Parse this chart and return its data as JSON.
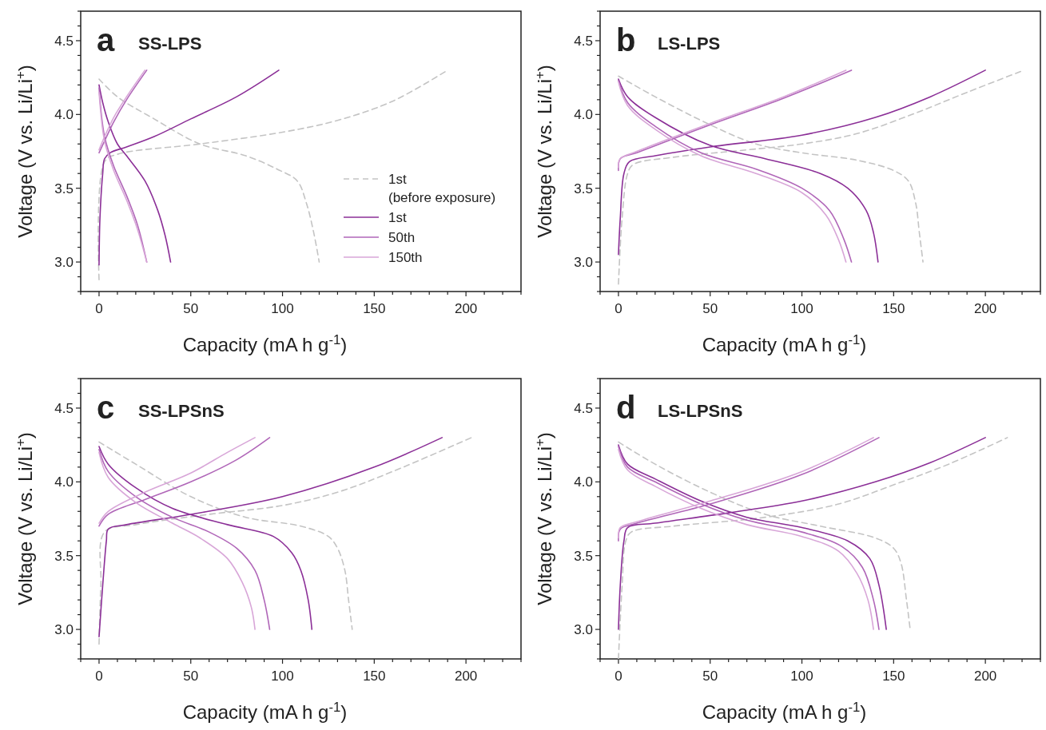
{
  "chart_data": [
    {
      "type": "line",
      "title": "SS-LPS",
      "annotations": [
        "a"
      ],
      "xlabel": "Capacity (mA h g$^{-1}$)",
      "ylabel": "Voltage (V vs. Li/Li$^{+}$)",
      "xlim": [
        -10,
        230
      ],
      "ylim": [
        2.8,
        4.7
      ],
      "legend": "bottom right",
      "xticks": [
        {
          "value": -10,
          "label": null
        },
        {
          "value": 0,
          "label": "0"
        },
        {
          "value": 10,
          "label": null
        },
        {
          "value": 20,
          "label": null
        },
        {
          "value": 30,
          "label": null
        },
        {
          "value": 40,
          "label": null
        },
        {
          "value": 50,
          "label": "50"
        },
        {
          "value": 60,
          "label": null
        },
        {
          "value": 70,
          "label": null
        },
        {
          "value": 80,
          "label": null
        },
        {
          "value": 90,
          "label": null
        },
        {
          "value": 100,
          "label": "100"
        },
        {
          "value": 110,
          "label": null
        },
        {
          "value": 120,
          "label": null
        },
        {
          "value": 130,
          "label": null
        },
        {
          "value": 140,
          "label": null
        },
        {
          "value": 150,
          "label": "150"
        },
        {
          "value": 160,
          "label": null
        },
        {
          "value": 170,
          "label": null
        },
        {
          "value": 180,
          "label": null
        },
        {
          "value": 190,
          "label": null
        },
        {
          "value": 200,
          "label": "200"
        },
        {
          "value": 210,
          "label": null
        },
        {
          "value": 220,
          "label": null
        },
        {
          "value": 230,
          "label": null
        }
      ],
      "yticks": [
        {
          "value": 2.8,
          "label": null
        },
        {
          "value": 2.9,
          "label": null
        },
        {
          "value": 3,
          "label": "3.0"
        },
        {
          "value": 3.1,
          "label": null
        },
        {
          "value": 3.2,
          "label": null
        },
        {
          "value": 3.3,
          "label": null
        },
        {
          "value": 3.4,
          "label": null
        },
        {
          "value": 3.5,
          "label": "3.5"
        },
        {
          "value": 3.6,
          "label": null
        },
        {
          "value": 3.7,
          "label": null
        },
        {
          "value": 3.8,
          "label": null
        },
        {
          "value": 3.9,
          "label": null
        },
        {
          "value": 4,
          "label": "4.0"
        },
        {
          "value": 4.1,
          "label": null
        },
        {
          "value": 4.2,
          "label": null
        },
        {
          "value": 4.3,
          "label": null
        },
        {
          "value": 4.4,
          "label": null
        },
        {
          "value": 4.5,
          "label": "4.5"
        },
        {
          "value": 4.6,
          "label": null
        },
        {
          "value": 4.7,
          "label": null
        }
      ],
      "series": [
        {
          "name": "1st\n(before exposure)",
          "color": "#c4c4c4",
          "line_style": "dashed",
          "x": [
            0,
            3,
            10,
            55,
            100,
            130,
            160,
            190,
            null,
            0,
            10,
            30,
            55,
            80,
            97,
            108,
            113,
            117,
            120
          ],
          "values": [
            2.88,
            3.68,
            3.73,
            3.8,
            3.88,
            3.96,
            4.09,
            4.3,
            null,
            4.24,
            4.12,
            3.97,
            3.8,
            3.72,
            3.63,
            3.55,
            3.4,
            3.2,
            3.0
          ]
        },
        {
          "name": "1st",
          "color": "#8b2f97",
          "x": [
            0,
            0.5,
            2,
            3,
            6,
            15,
            30,
            50,
            75,
            98,
            null,
            0,
            2,
            5,
            10,
            15,
            25,
            32,
            36,
            39
          ],
          "values": [
            2.98,
            3.3,
            3.6,
            3.7,
            3.74,
            3.78,
            3.85,
            3.97,
            4.12,
            4.3,
            null,
            4.2,
            4.08,
            3.95,
            3.8,
            3.72,
            3.55,
            3.35,
            3.18,
            3.0
          ]
        },
        {
          "name": "50th",
          "color": "#b066b8",
          "x": [
            0,
            3,
            8,
            15,
            26,
            null,
            0,
            3,
            8,
            15,
            21,
            26
          ],
          "values": [
            3.74,
            3.82,
            3.95,
            4.1,
            4.3,
            null,
            4.18,
            3.85,
            3.65,
            3.45,
            3.25,
            3.0
          ]
        },
        {
          "name": "150th",
          "color": "#d8a6d8",
          "x": [
            0,
            3,
            8,
            15,
            25,
            null,
            0,
            3,
            8,
            15,
            21,
            26
          ],
          "values": [
            3.76,
            3.85,
            3.98,
            4.12,
            4.3,
            null,
            4.15,
            3.82,
            3.62,
            3.42,
            3.22,
            3.0
          ]
        }
      ]
    },
    {
      "type": "line",
      "title": "LS-LPS",
      "annotations": [
        "b"
      ],
      "xlabel": "Capacity (mA h g$^{-1}$)",
      "ylabel": "Voltage (V vs. Li/Li$^{+}$)",
      "xlim": [
        -10,
        230
      ],
      "ylim": [
        2.8,
        4.7
      ],
      "xticks": [
        {
          "value": -10,
          "label": null
        },
        {
          "value": 0,
          "label": "0"
        },
        {
          "value": 10,
          "label": null
        },
        {
          "value": 20,
          "label": null
        },
        {
          "value": 30,
          "label": null
        },
        {
          "value": 40,
          "label": null
        },
        {
          "value": 50,
          "label": "50"
        },
        {
          "value": 60,
          "label": null
        },
        {
          "value": 70,
          "label": null
        },
        {
          "value": 80,
          "label": null
        },
        {
          "value": 90,
          "label": null
        },
        {
          "value": 100,
          "label": "100"
        },
        {
          "value": 110,
          "label": null
        },
        {
          "value": 120,
          "label": null
        },
        {
          "value": 130,
          "label": null
        },
        {
          "value": 140,
          "label": null
        },
        {
          "value": 150,
          "label": "150"
        },
        {
          "value": 160,
          "label": null
        },
        {
          "value": 170,
          "label": null
        },
        {
          "value": 180,
          "label": null
        },
        {
          "value": 190,
          "label": null
        },
        {
          "value": 200,
          "label": "200"
        },
        {
          "value": 210,
          "label": null
        },
        {
          "value": 220,
          "label": null
        },
        {
          "value": 230,
          "label": null
        }
      ],
      "yticks": [
        {
          "value": 2.8,
          "label": null
        },
        {
          "value": 2.9,
          "label": null
        },
        {
          "value": 3,
          "label": "3.0"
        },
        {
          "value": 3.1,
          "label": null
        },
        {
          "value": 3.2,
          "label": null
        },
        {
          "value": 3.3,
          "label": null
        },
        {
          "value": 3.4,
          "label": null
        },
        {
          "value": 3.5,
          "label": "3.5"
        },
        {
          "value": 3.6,
          "label": null
        },
        {
          "value": 3.7,
          "label": null
        },
        {
          "value": 3.8,
          "label": null
        },
        {
          "value": 3.9,
          "label": null
        },
        {
          "value": 4,
          "label": "4.0"
        },
        {
          "value": 4.1,
          "label": null
        },
        {
          "value": 4.2,
          "label": null
        },
        {
          "value": 4.3,
          "label": null
        },
        {
          "value": 4.4,
          "label": null
        },
        {
          "value": 4.5,
          "label": "4.5"
        },
        {
          "value": 4.6,
          "label": null
        },
        {
          "value": 4.7,
          "label": null
        }
      ],
      "series": [
        {
          "color": "#c4c4c4",
          "line_style": "dashed",
          "x": [
            0,
            2,
            5,
            8,
            30,
            70,
            100,
            130,
            160,
            190,
            221,
            null,
            0,
            20,
            50,
            75,
            100,
            130,
            150,
            158,
            162,
            164,
            166
          ],
          "values": [
            2.85,
            3.3,
            3.6,
            3.66,
            3.71,
            3.76,
            3.8,
            3.87,
            4.0,
            4.15,
            4.3,
            null,
            4.26,
            4.12,
            3.93,
            3.8,
            3.74,
            3.69,
            3.62,
            3.55,
            3.4,
            3.2,
            3.0
          ]
        },
        {
          "color": "#8b2f97",
          "x": [
            0,
            1,
            3,
            6,
            20,
            50,
            100,
            140,
            170,
            200,
            null,
            0,
            5,
            20,
            50,
            80,
            110,
            125,
            135,
            139,
            141.5
          ],
          "values": [
            3.05,
            3.3,
            3.6,
            3.68,
            3.72,
            3.78,
            3.86,
            3.98,
            4.12,
            4.3,
            null,
            4.24,
            4.12,
            3.98,
            3.79,
            3.7,
            3.6,
            3.5,
            3.35,
            3.2,
            3.0
          ]
        },
        {
          "color": "#b066b8",
          "x": [
            0,
            1,
            10,
            50,
            90,
            127,
            null,
            0,
            5,
            20,
            45,
            75,
            100,
            115,
            123,
            127
          ],
          "values": [
            3.62,
            3.7,
            3.74,
            3.93,
            4.11,
            4.3,
            null,
            4.23,
            4.08,
            3.92,
            3.74,
            3.63,
            3.5,
            3.35,
            3.15,
            3.0
          ]
        },
        {
          "color": "#d8a6d8",
          "x": [
            0,
            1,
            10,
            50,
            90,
            124,
            null,
            0,
            5,
            20,
            45,
            75,
            100,
            113,
            120,
            124
          ],
          "values": [
            3.64,
            3.7,
            3.75,
            3.94,
            4.12,
            4.3,
            null,
            4.22,
            4.06,
            3.9,
            3.72,
            3.6,
            3.47,
            3.32,
            3.15,
            3.0
          ]
        }
      ]
    },
    {
      "type": "line",
      "title": "SS-LPSnS",
      "annotations": [
        "c"
      ],
      "xlabel": "Capacity (mA h g$^{-1}$)",
      "ylabel": "Voltage (V vs. Li/Li$^{+}$)",
      "xlim": [
        -10,
        230
      ],
      "ylim": [
        2.8,
        4.7
      ],
      "xticks": [
        {
          "value": -10,
          "label": null
        },
        {
          "value": 0,
          "label": "0"
        },
        {
          "value": 10,
          "label": null
        },
        {
          "value": 20,
          "label": null
        },
        {
          "value": 30,
          "label": null
        },
        {
          "value": 40,
          "label": null
        },
        {
          "value": 50,
          "label": "50"
        },
        {
          "value": 60,
          "label": null
        },
        {
          "value": 70,
          "label": null
        },
        {
          "value": 80,
          "label": null
        },
        {
          "value": 90,
          "label": null
        },
        {
          "value": 100,
          "label": "100"
        },
        {
          "value": 110,
          "label": null
        },
        {
          "value": 120,
          "label": null
        },
        {
          "value": 130,
          "label": null
        },
        {
          "value": 140,
          "label": null
        },
        {
          "value": 150,
          "label": "150"
        },
        {
          "value": 160,
          "label": null
        },
        {
          "value": 170,
          "label": null
        },
        {
          "value": 180,
          "label": null
        },
        {
          "value": 190,
          "label": null
        },
        {
          "value": 200,
          "label": "200"
        },
        {
          "value": 210,
          "label": null
        },
        {
          "value": 220,
          "label": null
        },
        {
          "value": 230,
          "label": null
        }
      ],
      "yticks": [
        {
          "value": 2.8,
          "label": null
        },
        {
          "value": 2.9,
          "label": null
        },
        {
          "value": 3,
          "label": "3.0"
        },
        {
          "value": 3.1,
          "label": null
        },
        {
          "value": 3.2,
          "label": null
        },
        {
          "value": 3.3,
          "label": null
        },
        {
          "value": 3.4,
          "label": null
        },
        {
          "value": 3.5,
          "label": "3.5"
        },
        {
          "value": 3.6,
          "label": null
        },
        {
          "value": 3.7,
          "label": null
        },
        {
          "value": 3.8,
          "label": null
        },
        {
          "value": 3.9,
          "label": null
        },
        {
          "value": 4,
          "label": "4.0"
        },
        {
          "value": 4.1,
          "label": null
        },
        {
          "value": 4.2,
          "label": null
        },
        {
          "value": 4.3,
          "label": null
        },
        {
          "value": 4.4,
          "label": null
        },
        {
          "value": 4.5,
          "label": "4.5"
        },
        {
          "value": 4.6,
          "label": null
        },
        {
          "value": 4.7,
          "label": null
        }
      ],
      "series": [
        {
          "color": "#c4c4c4",
          "line_style": "dashed",
          "x": [
            0,
            1,
            3,
            20,
            60,
            100,
            130,
            160,
            203,
            null,
            0,
            20,
            50,
            80,
            110,
            125,
            130,
            134,
            136,
            138
          ],
          "values": [
            2.9,
            3.3,
            3.66,
            3.71,
            3.78,
            3.84,
            3.93,
            4.07,
            4.3,
            null,
            4.27,
            4.12,
            3.9,
            3.76,
            3.7,
            3.63,
            3.55,
            3.4,
            3.2,
            3.0
          ]
        },
        {
          "color": "#8b2f97",
          "x": [
            0,
            2,
            4,
            5,
            15,
            50,
            100,
            150,
            187,
            null,
            0,
            5,
            20,
            40,
            70,
            95,
            105,
            110,
            114,
            116
          ],
          "values": [
            2.95,
            3.3,
            3.6,
            3.68,
            3.71,
            3.78,
            3.9,
            4.1,
            4.3,
            null,
            4.24,
            4.12,
            3.96,
            3.82,
            3.71,
            3.63,
            3.52,
            3.4,
            3.2,
            3.0
          ]
        },
        {
          "color": "#b066b8",
          "x": [
            0,
            5,
            25,
            50,
            75,
            93,
            null,
            0,
            5,
            20,
            40,
            60,
            75,
            85,
            90,
            93
          ],
          "values": [
            3.7,
            3.78,
            3.88,
            4.0,
            4.15,
            4.3,
            null,
            4.22,
            4.07,
            3.9,
            3.76,
            3.66,
            3.55,
            3.4,
            3.2,
            3.0
          ]
        },
        {
          "color": "#d8a6d8",
          "x": [
            0,
            5,
            25,
            50,
            70,
            85,
            null,
            0,
            5,
            20,
            40,
            55,
            70,
            78,
            83,
            85
          ],
          "values": [
            3.72,
            3.8,
            3.93,
            4.06,
            4.2,
            4.3,
            null,
            4.2,
            4.03,
            3.86,
            3.72,
            3.62,
            3.48,
            3.32,
            3.15,
            3.0
          ]
        }
      ]
    },
    {
      "type": "line",
      "title": "LS-LPSnS",
      "annotations": [
        "d"
      ],
      "xlabel": "Capacity (mA h g$^{-1}$)",
      "ylabel": "Voltage (V vs. Li/Li$^{+}$)",
      "xlim": [
        -10,
        230
      ],
      "ylim": [
        2.8,
        4.7
      ],
      "xticks": [
        {
          "value": -10,
          "label": null
        },
        {
          "value": 0,
          "label": "0"
        },
        {
          "value": 10,
          "label": null
        },
        {
          "value": 20,
          "label": null
        },
        {
          "value": 30,
          "label": null
        },
        {
          "value": 40,
          "label": null
        },
        {
          "value": 50,
          "label": "50"
        },
        {
          "value": 60,
          "label": null
        },
        {
          "value": 70,
          "label": null
        },
        {
          "value": 80,
          "label": null
        },
        {
          "value": 90,
          "label": null
        },
        {
          "value": 100,
          "label": "100"
        },
        {
          "value": 110,
          "label": null
        },
        {
          "value": 120,
          "label": null
        },
        {
          "value": 130,
          "label": null
        },
        {
          "value": 140,
          "label": null
        },
        {
          "value": 150,
          "label": "150"
        },
        {
          "value": 160,
          "label": null
        },
        {
          "value": 170,
          "label": null
        },
        {
          "value": 180,
          "label": null
        },
        {
          "value": 190,
          "label": null
        },
        {
          "value": 200,
          "label": "200"
        },
        {
          "value": 210,
          "label": null
        },
        {
          "value": 220,
          "label": null
        },
        {
          "value": 230,
          "label": null
        }
      ],
      "yticks": [
        {
          "value": 2.8,
          "label": null
        },
        {
          "value": 2.9,
          "label": null
        },
        {
          "value": 3,
          "label": "3.0"
        },
        {
          "value": 3.1,
          "label": null
        },
        {
          "value": 3.2,
          "label": null
        },
        {
          "value": 3.3,
          "label": null
        },
        {
          "value": 3.4,
          "label": null
        },
        {
          "value": 3.5,
          "label": "3.5"
        },
        {
          "value": 3.6,
          "label": null
        },
        {
          "value": 3.7,
          "label": null
        },
        {
          "value": 3.8,
          "label": null
        },
        {
          "value": 3.9,
          "label": null
        },
        {
          "value": 4,
          "label": "4.0"
        },
        {
          "value": 4.1,
          "label": null
        },
        {
          "value": 4.2,
          "label": null
        },
        {
          "value": 4.3,
          "label": null
        },
        {
          "value": 4.4,
          "label": null
        },
        {
          "value": 4.5,
          "label": "4.5"
        },
        {
          "value": 4.6,
          "label": null
        },
        {
          "value": 4.7,
          "label": null
        }
      ],
      "series": [
        {
          "color": "#c4c4c4",
          "line_style": "dashed",
          "x": [
            0,
            2,
            4,
            7,
            30,
            80,
            120,
            150,
            180,
            212,
            null,
            0,
            20,
            50,
            80,
            110,
            140,
            150,
            154,
            157,
            159
          ],
          "values": [
            2.8,
            3.3,
            3.6,
            3.66,
            3.7,
            3.76,
            3.85,
            3.98,
            4.12,
            4.3,
            null,
            4.27,
            4.12,
            3.93,
            3.78,
            3.7,
            3.62,
            3.55,
            3.45,
            3.2,
            3.0
          ]
        },
        {
          "color": "#8b2f97",
          "x": [
            0,
            1,
            3,
            5,
            20,
            60,
            100,
            140,
            170,
            200,
            null,
            0,
            5,
            20,
            45,
            70,
            100,
            125,
            137,
            142,
            146
          ],
          "values": [
            3.0,
            3.3,
            3.6,
            3.69,
            3.72,
            3.79,
            3.87,
            4.0,
            4.13,
            4.3,
            null,
            4.25,
            4.12,
            4.02,
            3.87,
            3.76,
            3.69,
            3.6,
            3.48,
            3.3,
            3.0
          ]
        },
        {
          "color": "#b066b8",
          "x": [
            0,
            1,
            10,
            50,
            100,
            142,
            null,
            0,
            5,
            20,
            45,
            70,
            100,
            122,
            133,
            139,
            142
          ],
          "values": [
            3.6,
            3.68,
            3.72,
            3.85,
            4.05,
            4.3,
            null,
            4.24,
            4.1,
            4.0,
            3.85,
            3.74,
            3.66,
            3.56,
            3.42,
            3.2,
            3.0
          ]
        },
        {
          "color": "#d8a6d8",
          "x": [
            0,
            1,
            10,
            50,
            100,
            139,
            null,
            0,
            5,
            20,
            45,
            70,
            100,
            120,
            130,
            136,
            139
          ],
          "values": [
            3.62,
            3.69,
            3.73,
            3.87,
            4.07,
            4.3,
            null,
            4.22,
            4.08,
            3.97,
            3.82,
            3.71,
            3.63,
            3.53,
            3.38,
            3.2,
            3.0
          ]
        }
      ]
    }
  ]
}
